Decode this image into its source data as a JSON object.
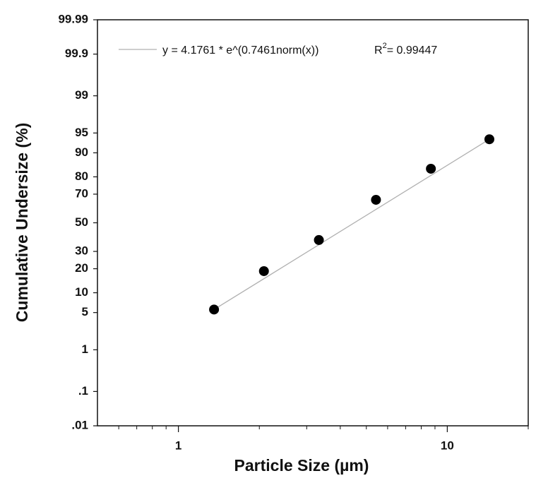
{
  "chart_data": {
    "type": "log-probability-scatter",
    "xlabel": "Particle Size (µm)",
    "ylabel": "Cumulative Undersize (%)",
    "xscale": "log",
    "yscale": "probability",
    "xlim": [
      0.5,
      20
    ],
    "xticks": [
      1,
      10
    ],
    "xminorticks": [
      0.6,
      0.7,
      0.8,
      0.9,
      2,
      3,
      4,
      5,
      6,
      7,
      8,
      9,
      20
    ],
    "ylim": [
      0.01,
      99.99
    ],
    "yticks": [
      {
        "value": 0.01,
        "label": ".01"
      },
      {
        "value": 0.1,
        "label": ".1"
      },
      1,
      5,
      10,
      20,
      30,
      50,
      70,
      80,
      90,
      95,
      99,
      99.9,
      99.99
    ],
    "points": {
      "color": "#000000",
      "x": [
        1.357,
        2.08,
        3.33,
        5.43,
        8.69,
        14.34
      ],
      "values": [
        5.6,
        18.8,
        37.6,
        66.3,
        83.9,
        93.7
      ]
    },
    "fit": {
      "color": "#b0b0b0",
      "x": [
        1.357,
        14.34
      ],
      "values": [
        5.6,
        93.7
      ]
    },
    "legend": {
      "equation": "y = 4.1761 * e^(0.7461norm(x))",
      "r_label": "R",
      "r_superscript": "2",
      "r_value": "= 0.99447"
    }
  }
}
